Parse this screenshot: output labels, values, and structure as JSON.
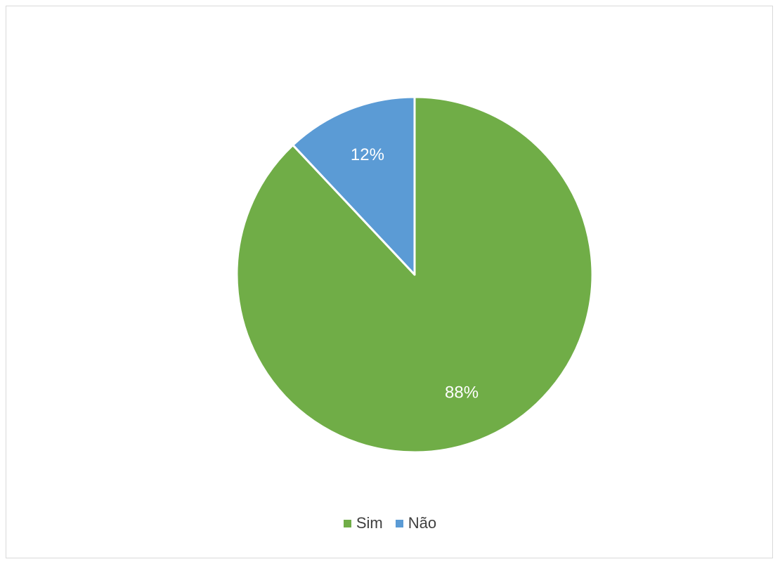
{
  "chart_data": {
    "type": "pie",
    "title": "",
    "slices": [
      {
        "label": "Sim",
        "value": 88,
        "display": "88%",
        "color": "#70AD47"
      },
      {
        "label": "Não",
        "value": 12,
        "display": "12%",
        "color": "#5B9BD5"
      }
    ],
    "start_angle_deg": 0,
    "direction": "clockwise",
    "legend_position": "bottom"
  }
}
